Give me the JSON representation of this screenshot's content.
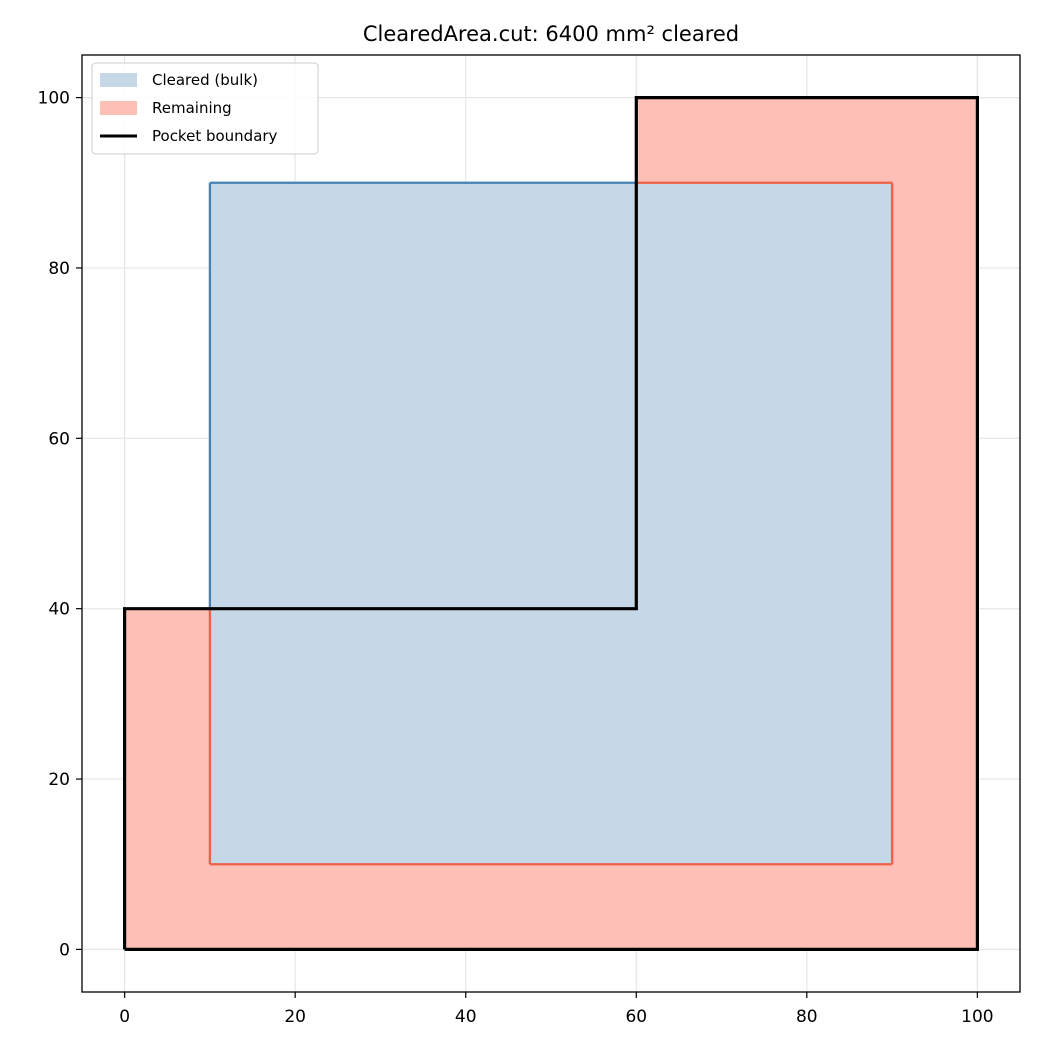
{
  "chart_data": {
    "type": "area",
    "title": "ClearedArea.cut: 6400 mm² cleared",
    "xlabel": "",
    "ylabel": "",
    "xlim": [
      -5,
      105
    ],
    "ylim": [
      -5,
      105
    ],
    "x_ticks": [
      0,
      20,
      40,
      60,
      80,
      100
    ],
    "y_ticks": [
      0,
      20,
      40,
      60,
      80,
      100
    ],
    "grid": true,
    "legend_position": "top-left",
    "colors": {
      "cleared_fill": "#c6d8e8",
      "cleared_edge": "#4682b4",
      "remaining_fill": "#fec0b6",
      "remaining_edge": "#f06047",
      "boundary": "#000000",
      "grid": "#e6e6e6"
    },
    "series": [
      {
        "name": "Cleared (bulk)",
        "kind": "filled-polygon",
        "points": [
          [
            10,
            10
          ],
          [
            90,
            10
          ],
          [
            90,
            90
          ],
          [
            10,
            90
          ]
        ]
      },
      {
        "name": "Remaining",
        "kind": "filled-polygon-with-hole",
        "outer": [
          [
            0,
            0
          ],
          [
            100,
            0
          ],
          [
            100,
            100
          ],
          [
            60,
            100
          ],
          [
            60,
            40
          ],
          [
            0,
            40
          ]
        ],
        "hole": [
          [
            10,
            10
          ],
          [
            90,
            10
          ],
          [
            90,
            90
          ],
          [
            10,
            90
          ]
        ]
      },
      {
        "name": "Pocket boundary",
        "kind": "line",
        "points": [
          [
            0,
            0
          ],
          [
            100,
            0
          ],
          [
            100,
            100
          ],
          [
            60,
            100
          ],
          [
            60,
            40
          ],
          [
            0,
            40
          ],
          [
            0,
            0
          ]
        ]
      }
    ]
  }
}
